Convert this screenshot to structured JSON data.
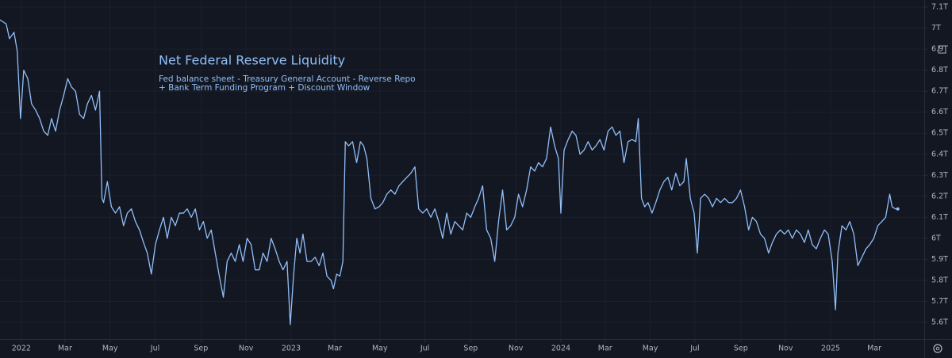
{
  "chart_data": {
    "type": "line",
    "title": "Net Federal Reserve Liquidity",
    "subtitle": [
      "Fed balance sheet - Treasury General Account - Reverse Repo",
      "+ Bank Term Funding Program + Discount Window"
    ],
    "color": "#90bff9",
    "grid": true,
    "x": [
      2021.92,
      2021.944,
      2021.956,
      2021.973,
      2021.985,
      2021.997,
      2022.009,
      2022.024,
      2022.038,
      2022.053,
      2022.068,
      2022.083,
      2022.098,
      2022.112,
      2022.127,
      2022.142,
      2022.157,
      2022.172,
      2022.186,
      2022.201,
      2022.216,
      2022.231,
      2022.245,
      2022.26,
      2022.275,
      2022.29,
      2022.299,
      2022.305,
      2022.319,
      2022.334,
      2022.349,
      2022.364,
      2022.379,
      2022.393,
      2022.408,
      2022.423,
      2022.438,
      2022.453,
      2022.467,
      2022.482,
      2022.497,
      2022.512,
      2022.527,
      2022.541,
      2022.556,
      2022.571,
      2022.586,
      2022.601,
      2022.615,
      2022.63,
      2022.645,
      2022.66,
      2022.675,
      2022.689,
      2022.704,
      2022.719,
      2022.734,
      2022.749,
      2022.763,
      2022.778,
      2022.793,
      2022.808,
      2022.822,
      2022.837,
      2022.852,
      2022.867,
      2022.882,
      2022.896,
      2022.911,
      2022.926,
      2022.941,
      2022.956,
      2022.97,
      2022.985,
      2022.997,
      2023.009,
      2023.021,
      2023.033,
      2023.044,
      2023.059,
      2023.074,
      2023.089,
      2023.104,
      2023.118,
      2023.133,
      2023.148,
      2023.157,
      2023.169,
      2023.181,
      2023.192,
      2023.201,
      2023.213,
      2023.228,
      2023.243,
      2023.257,
      2023.269,
      2023.281,
      2023.296,
      2023.311,
      2023.326,
      2023.34,
      2023.355,
      2023.37,
      2023.385,
      2023.4,
      2023.414,
      2023.429,
      2023.444,
      2023.459,
      2023.473,
      2023.488,
      2023.503,
      2023.518,
      2023.533,
      2023.547,
      2023.562,
      2023.577,
      2023.592,
      2023.607,
      2023.621,
      2023.636,
      2023.651,
      2023.666,
      2023.681,
      2023.695,
      2023.71,
      2023.725,
      2023.74,
      2023.755,
      2023.769,
      2023.784,
      2023.799,
      2023.814,
      2023.829,
      2023.843,
      2023.858,
      2023.873,
      2023.888,
      2023.903,
      2023.917,
      2023.932,
      2023.947,
      2023.962,
      2023.977,
      2023.991,
      2024.0,
      2024.012,
      2024.027,
      2024.042,
      2024.056,
      2024.071,
      2024.086,
      2024.101,
      2024.116,
      2024.13,
      2024.145,
      2024.16,
      2024.175,
      2024.19,
      2024.204,
      2024.219,
      2024.234,
      2024.249,
      2024.264,
      2024.278,
      2024.287,
      2024.299,
      2024.311,
      2024.323,
      2024.338,
      2024.352,
      2024.367,
      2024.382,
      2024.397,
      2024.411,
      2024.426,
      2024.441,
      2024.456,
      2024.465,
      2024.48,
      2024.494,
      2024.506,
      2024.518,
      2024.533,
      2024.548,
      2024.562,
      2024.577,
      2024.592,
      2024.607,
      2024.622,
      2024.636,
      2024.651,
      2024.666,
      2024.681,
      2024.696,
      2024.71,
      2024.725,
      2024.74,
      2024.755,
      2024.77,
      2024.784,
      2024.799,
      2024.814,
      2024.829,
      2024.843,
      2024.858,
      2024.873,
      2024.888,
      2024.903,
      2024.917,
      2024.932,
      2024.947,
      2024.962,
      2024.977,
      2024.991,
      2025.006,
      2025.018,
      2025.027,
      2025.042,
      2025.057,
      2025.071,
      2025.086,
      2025.101,
      2025.116,
      2025.131,
      2025.145,
      2025.16,
      2025.175,
      2025.19,
      2025.204,
      2025.219,
      2025.228,
      2025.24,
      2025.249
    ],
    "values": [
      7.04,
      7.02,
      6.95,
      6.98,
      6.89,
      6.57,
      6.8,
      6.76,
      6.64,
      6.61,
      6.57,
      6.51,
      6.49,
      6.57,
      6.51,
      6.61,
      6.68,
      6.76,
      6.72,
      6.7,
      6.59,
      6.57,
      6.64,
      6.68,
      6.61,
      6.7,
      6.19,
      6.17,
      6.27,
      6.15,
      6.12,
      6.15,
      6.06,
      6.12,
      6.14,
      6.08,
      6.04,
      5.98,
      5.93,
      5.83,
      5.97,
      6.04,
      6.1,
      6.0,
      6.1,
      6.06,
      6.12,
      6.12,
      6.14,
      6.1,
      6.14,
      6.04,
      6.08,
      6.0,
      6.04,
      5.93,
      5.82,
      5.72,
      5.89,
      5.93,
      5.89,
      5.97,
      5.89,
      6.0,
      5.97,
      5.85,
      5.85,
      5.93,
      5.89,
      6.0,
      5.95,
      5.89,
      5.85,
      5.89,
      5.59,
      5.82,
      6.0,
      5.93,
      6.02,
      5.89,
      5.89,
      5.91,
      5.87,
      5.93,
      5.82,
      5.8,
      5.76,
      5.83,
      5.82,
      5.89,
      6.46,
      6.44,
      6.46,
      6.36,
      6.46,
      6.44,
      6.38,
      6.19,
      6.14,
      6.15,
      6.17,
      6.21,
      6.23,
      6.21,
      6.25,
      6.27,
      6.29,
      6.31,
      6.34,
      6.14,
      6.12,
      6.14,
      6.1,
      6.14,
      6.08,
      6.0,
      6.12,
      6.02,
      6.08,
      6.06,
      6.04,
      6.12,
      6.1,
      6.15,
      6.19,
      6.25,
      6.04,
      6.0,
      5.89,
      6.08,
      6.23,
      6.04,
      6.06,
      6.1,
      6.21,
      6.15,
      6.23,
      6.34,
      6.32,
      6.36,
      6.34,
      6.38,
      6.53,
      6.44,
      6.38,
      6.12,
      6.42,
      6.47,
      6.51,
      6.49,
      6.4,
      6.42,
      6.46,
      6.42,
      6.44,
      6.47,
      6.42,
      6.51,
      6.53,
      6.49,
      6.51,
      6.36,
      6.46,
      6.47,
      6.46,
      6.57,
      6.19,
      6.15,
      6.17,
      6.12,
      6.17,
      6.23,
      6.27,
      6.29,
      6.23,
      6.31,
      6.25,
      6.27,
      6.38,
      6.19,
      6.12,
      5.93,
      6.19,
      6.21,
      6.19,
      6.15,
      6.19,
      6.17,
      6.19,
      6.17,
      6.17,
      6.19,
      6.23,
      6.15,
      6.04,
      6.1,
      6.08,
      6.02,
      6.0,
      5.93,
      5.98,
      6.02,
      6.04,
      6.02,
      6.04,
      6.0,
      6.04,
      6.02,
      5.98,
      6.04,
      5.97,
      5.95,
      6.0,
      6.04,
      6.02,
      5.89,
      5.66,
      5.93,
      6.06,
      6.04,
      6.08,
      6.02,
      5.87,
      5.91,
      5.95,
      5.97,
      6.0,
      6.06,
      6.08,
      6.1,
      6.21,
      6.15,
      6.14,
      6.14
    ],
    "xlim": [
      2021.921,
      2025.347
    ],
    "xticks": [
      {
        "value": 2022,
        "label": "2022"
      },
      {
        "value": 2022.162,
        "label": "Mar"
      },
      {
        "value": 2022.329,
        "label": "May"
      },
      {
        "value": 2022.496,
        "label": "Jul"
      },
      {
        "value": 2022.666,
        "label": "Sep"
      },
      {
        "value": 2022.833,
        "label": "Nov"
      },
      {
        "value": 2023,
        "label": "2023"
      },
      {
        "value": 2023.162,
        "label": "Mar"
      },
      {
        "value": 2023.329,
        "label": "May"
      },
      {
        "value": 2023.496,
        "label": "Jul"
      },
      {
        "value": 2023.666,
        "label": "Sep"
      },
      {
        "value": 2023.833,
        "label": "Nov"
      },
      {
        "value": 2024,
        "label": "2024"
      },
      {
        "value": 2024.164,
        "label": "Mar"
      },
      {
        "value": 2024.331,
        "label": "May"
      },
      {
        "value": 2024.497,
        "label": "Jul"
      },
      {
        "value": 2024.667,
        "label": "Sep"
      },
      {
        "value": 2024.833,
        "label": "Nov"
      },
      {
        "value": 2025,
        "label": "2025"
      },
      {
        "value": 2025.162,
        "label": "Mar"
      }
    ],
    "ylim": [
      5.521,
      7.134
    ],
    "yticks": [
      {
        "value": 5.6,
        "label": "5.6T"
      },
      {
        "value": 5.7,
        "label": "5.7T"
      },
      {
        "value": 5.8,
        "label": "5.8T"
      },
      {
        "value": 5.9,
        "label": "5.9T"
      },
      {
        "value": 6,
        "label": "6T"
      },
      {
        "value": 6.1,
        "label": "6.1T"
      },
      {
        "value": 6.2,
        "label": "6.2T"
      },
      {
        "value": 6.3,
        "label": "6.3T"
      },
      {
        "value": 6.4,
        "label": "6.4T"
      },
      {
        "value": 6.5,
        "label": "6.5T"
      },
      {
        "value": 6.6,
        "label": "6.6T"
      },
      {
        "value": 6.7,
        "label": "6.7T"
      },
      {
        "value": 6.8,
        "label": "6.8T"
      },
      {
        "value": 6.9,
        "label": "6.9T"
      },
      {
        "value": 7,
        "label": "7T"
      },
      {
        "value": 7.1,
        "label": "7.1T"
      }
    ]
  }
}
